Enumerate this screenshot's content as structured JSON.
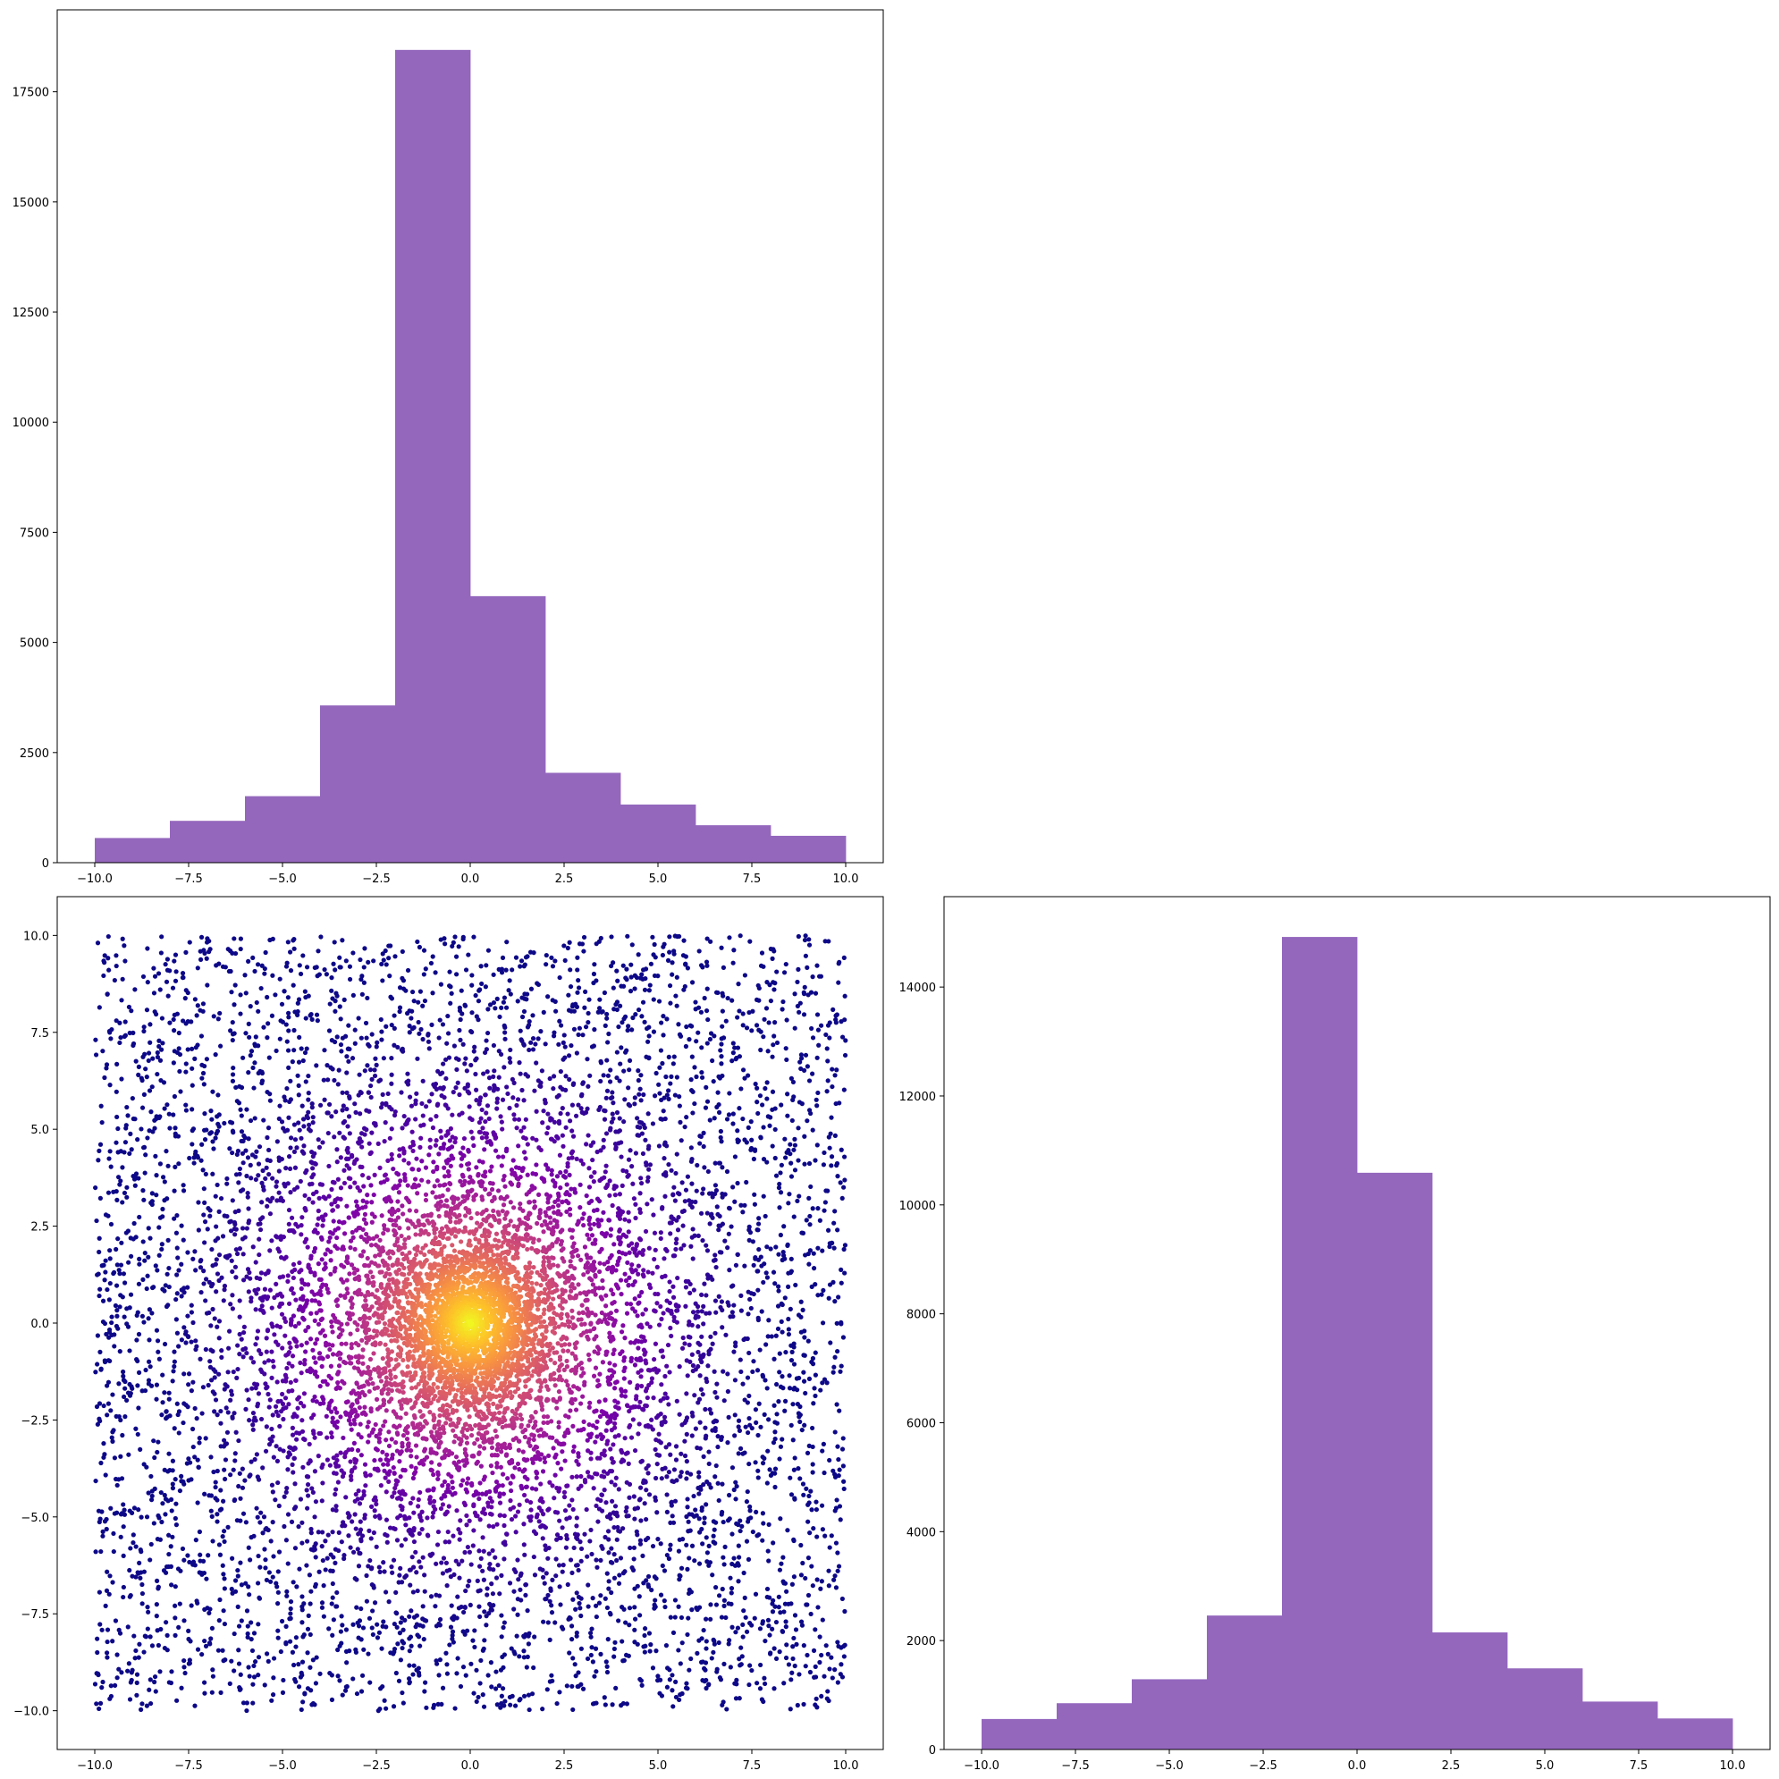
{
  "figure": {
    "layout": "corner-plot",
    "background": "#ffffff"
  },
  "chart_data": [
    {
      "id": "hist-x",
      "position": "top-left",
      "type": "bar",
      "variant": "histogram",
      "title": "",
      "xlabel": "",
      "ylabel": "",
      "color": "#9467bd",
      "bin_edges": [
        -10,
        -8,
        -6,
        -4,
        -2,
        0,
        2,
        4,
        6,
        8,
        10
      ],
      "values": [
        560,
        950,
        1510,
        3570,
        18450,
        6050,
        2040,
        1320,
        850,
        610
      ],
      "xlim": [
        -11,
        11
      ],
      "ylim": [
        0,
        19360
      ],
      "xticks": [
        -10.0,
        -7.5,
        -5.0,
        -2.5,
        0.0,
        2.5,
        5.0,
        7.5,
        10.0
      ],
      "xtick_labels": [
        "−10.0",
        "−7.5",
        "−5.0",
        "−2.5",
        "0.0",
        "2.5",
        "5.0",
        "7.5",
        "10.0"
      ],
      "yticks": [
        0,
        2500,
        5000,
        7500,
        10000,
        12500,
        15000,
        17500
      ],
      "ytick_labels": [
        "0",
        "2500",
        "5000",
        "7500",
        "10000",
        "12500",
        "15000",
        "17500"
      ],
      "grid": false,
      "legend": "none"
    },
    {
      "id": "scatter-xy",
      "position": "bottom-left",
      "type": "scatter",
      "title": "",
      "xlabel": "",
      "ylabel": "",
      "colormap": "plasma",
      "color_by": "point density",
      "point_count_estimate": 10000,
      "data_range": {
        "x": [
          -10,
          10
        ],
        "y": [
          -10,
          10
        ]
      },
      "dense_center": [
        0,
        0
      ],
      "xlim": [
        -11,
        11
      ],
      "ylim": [
        -11,
        11
      ],
      "xticks": [
        -10.0,
        -7.5,
        -5.0,
        -2.5,
        0.0,
        2.5,
        5.0,
        7.5,
        10.0
      ],
      "xtick_labels": [
        "−10.0",
        "−7.5",
        "−5.0",
        "−2.5",
        "0.0",
        "2.5",
        "5.0",
        "7.5",
        "10.0"
      ],
      "yticks": [
        -10.0,
        -7.5,
        -5.0,
        -2.5,
        0.0,
        2.5,
        5.0,
        7.5,
        10.0
      ],
      "ytick_labels": [
        "−10.0",
        "−7.5",
        "−5.0",
        "−2.5",
        "0.0",
        "2.5",
        "5.0",
        "7.5",
        "10.0"
      ],
      "grid": false,
      "legend": "none"
    },
    {
      "id": "hist-y",
      "position": "bottom-right",
      "type": "bar",
      "variant": "histogram",
      "title": "",
      "xlabel": "",
      "ylabel": "",
      "color": "#9467bd",
      "bin_edges": [
        -10,
        -8,
        -6,
        -4,
        -2,
        0,
        2,
        4,
        6,
        8,
        10
      ],
      "values": [
        560,
        850,
        1290,
        2460,
        14920,
        10590,
        2150,
        1490,
        880,
        570
      ],
      "xlim": [
        -11,
        11
      ],
      "ylim": [
        0,
        15660
      ],
      "xticks": [
        -10.0,
        -7.5,
        -5.0,
        -2.5,
        0.0,
        2.5,
        5.0,
        7.5,
        10.0
      ],
      "xtick_labels": [
        "−10.0",
        "−7.5",
        "−5.0",
        "−2.5",
        "0.0",
        "2.5",
        "5.0",
        "7.5",
        "10.0"
      ],
      "yticks": [
        0,
        2000,
        4000,
        6000,
        8000,
        10000,
        12000,
        14000
      ],
      "ytick_labels": [
        "0",
        "2000",
        "4000",
        "6000",
        "8000",
        "10000",
        "12000",
        "14000"
      ],
      "grid": false,
      "legend": "none"
    }
  ]
}
